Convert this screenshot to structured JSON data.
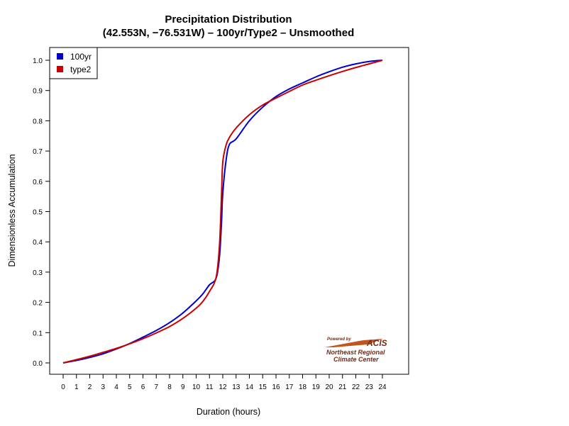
{
  "chart_data": {
    "type": "line",
    "title": "Precipitation Distribution",
    "subtitle": "(42.553N, −76.531W) – 100yr/Type2 – Unsmoothed",
    "xlabel": "Duration (hours)",
    "ylabel": "Dimensionless Accumulation",
    "xlim": [
      0,
      24
    ],
    "ylim": [
      0,
      1
    ],
    "x_ticks": [
      "0",
      "1",
      "2",
      "3",
      "4",
      "5",
      "6",
      "7",
      "8",
      "9",
      "10",
      "11",
      "12",
      "13",
      "14",
      "15",
      "16",
      "17",
      "18",
      "19",
      "20",
      "21",
      "22",
      "23",
      "24"
    ],
    "y_ticks": [
      "0.0",
      "0.1",
      "0.2",
      "0.3",
      "0.4",
      "0.5",
      "0.6",
      "0.7",
      "0.8",
      "0.9",
      "1.0"
    ],
    "grid": false,
    "legend_position": "top-left",
    "series": [
      {
        "name": "100yr",
        "color": "#0000cc",
        "x": [
          0,
          1,
          2,
          3,
          4,
          5,
          6,
          7,
          8,
          9,
          10,
          10.5,
          11,
          11.5,
          11.75,
          11.9,
          12,
          12.25,
          12.5,
          13,
          14,
          15,
          16,
          17,
          18,
          19,
          20,
          21,
          22,
          23,
          24
        ],
        "y": [
          0,
          0.008,
          0.018,
          0.03,
          0.046,
          0.064,
          0.085,
          0.107,
          0.133,
          0.165,
          0.205,
          0.228,
          0.258,
          0.28,
          0.35,
          0.46,
          0.56,
          0.67,
          0.722,
          0.74,
          0.8,
          0.845,
          0.88,
          0.905,
          0.925,
          0.945,
          0.962,
          0.977,
          0.988,
          0.996,
          1.0
        ]
      },
      {
        "name": "type2",
        "color": "#cc0000",
        "x": [
          0,
          1,
          2,
          3,
          4,
          5,
          6,
          7,
          8,
          9,
          10,
          10.5,
          11,
          11.5,
          11.75,
          11.9,
          12,
          12.25,
          12.5,
          13,
          14,
          15,
          16,
          17,
          18,
          19,
          20,
          21,
          22,
          23,
          24
        ],
        "y": [
          0,
          0.011,
          0.022,
          0.035,
          0.048,
          0.063,
          0.08,
          0.099,
          0.12,
          0.147,
          0.181,
          0.203,
          0.236,
          0.283,
          0.387,
          0.55,
          0.663,
          0.72,
          0.745,
          0.776,
          0.82,
          0.852,
          0.875,
          0.897,
          0.918,
          0.934,
          0.949,
          0.963,
          0.976,
          0.988,
          1.0
        ]
      }
    ]
  },
  "logo": {
    "powered_by": "Powered by",
    "acis": "ACIS",
    "line1": "Northeast Regional",
    "line2": "Climate Center"
  }
}
